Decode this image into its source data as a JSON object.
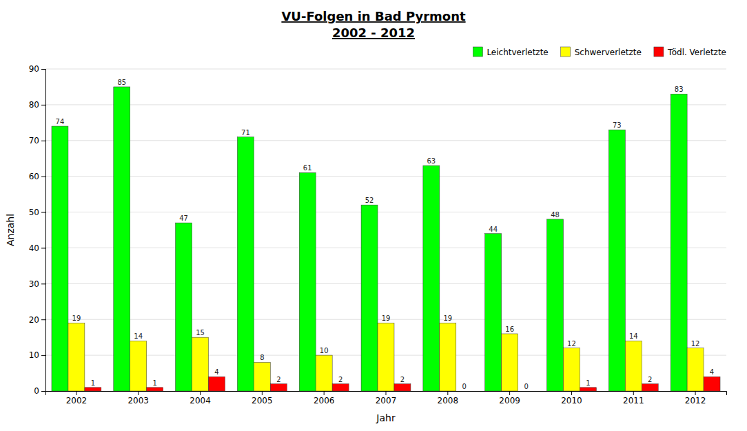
{
  "chart_data": {
    "type": "bar",
    "title": "VU-Folgen in Bad Pyrmont",
    "subtitle": "2002 - 2012",
    "x_label": "Jahr",
    "y_label": "Anzahl",
    "categories": [
      "2002",
      "2003",
      "2004",
      "2005",
      "2006",
      "2007",
      "2008",
      "2009",
      "2010",
      "2011",
      "2012"
    ],
    "series": [
      {
        "name": "Leichtverletzte",
        "color": "#00FF00",
        "values": [
          74,
          85,
          47,
          71,
          61,
          52,
          63,
          44,
          48,
          73,
          83
        ]
      },
      {
        "name": "Schwerverletzte",
        "color": "#FFFF00",
        "values": [
          19,
          14,
          15,
          8,
          10,
          19,
          19,
          16,
          12,
          14,
          12
        ]
      },
      {
        "name": "Tödl. Verletzte",
        "color": "#FF0000",
        "values": [
          1,
          1,
          4,
          2,
          2,
          2,
          0,
          0,
          1,
          2,
          4
        ]
      }
    ],
    "ylim": [
      0,
      90
    ],
    "yticks": [
      0,
      10,
      20,
      30,
      40,
      50,
      60,
      70,
      80,
      90
    ],
    "grid": true,
    "legend": "upper right",
    "data_labels": true
  }
}
